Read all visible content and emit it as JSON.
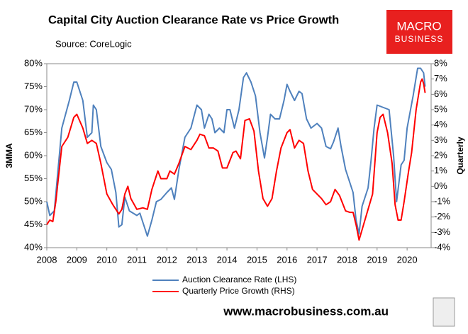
{
  "chart_data": {
    "type": "line",
    "title": "Capital City Auction Clearance Rate vs Price Growth",
    "subtitle": "Source: CoreLogic",
    "ylabel": "3MMA",
    "y2label": "Quarterly",
    "logo": [
      "MACRO",
      "BUSINESS"
    ],
    "footer": "www.macrobusiness.com.au",
    "grid": false,
    "legend": "bottom",
    "xlim": [
      2008,
      2020.8
    ],
    "xticks": [
      2008,
      2009,
      2010,
      2011,
      2012,
      2013,
      2014,
      2015,
      2016,
      2017,
      2018,
      2019,
      2020
    ],
    "ylim": [
      40,
      80
    ],
    "yticks": [
      {
        "value": 40,
        "label": "40%"
      },
      {
        "value": 45,
        "label": "45%"
      },
      {
        "value": 50,
        "label": "50%"
      },
      {
        "value": 55,
        "label": "55%"
      },
      {
        "value": 60,
        "label": "60%"
      },
      {
        "value": 65,
        "label": "65%"
      },
      {
        "value": 70,
        "label": "70%"
      },
      {
        "value": 75,
        "label": "75%"
      },
      {
        "value": 80,
        "label": "80%"
      }
    ],
    "y2lim": [
      -4,
      8
    ],
    "y2ticks": [
      {
        "value": -4,
        "label": "-4%"
      },
      {
        "value": -3,
        "label": "-3%"
      },
      {
        "value": -2,
        "label": "-2%"
      },
      {
        "value": -1,
        "label": "-1%"
      },
      {
        "value": 0,
        "label": "0%"
      },
      {
        "value": 1,
        "label": "1%"
      },
      {
        "value": 2,
        "label": "2%"
      },
      {
        "value": 3,
        "label": "3%"
      },
      {
        "value": 4,
        "label": "4%"
      },
      {
        "value": 5,
        "label": "5%"
      },
      {
        "value": 6,
        "label": "6%"
      },
      {
        "value": 7,
        "label": "7%"
      },
      {
        "value": 8,
        "label": "8%"
      }
    ],
    "series": [
      {
        "name": "Auction Clearance Rate (LHS)",
        "color": "#4f81bd",
        "axis": "y",
        "x": [
          2008.0,
          2008.1,
          2008.25,
          2008.5,
          2008.75,
          2008.9,
          2009.0,
          2009.2,
          2009.35,
          2009.5,
          2009.55,
          2009.65,
          2009.8,
          2010.0,
          2010.15,
          2010.3,
          2010.4,
          2010.5,
          2010.6,
          2010.75,
          2011.0,
          2011.1,
          2011.2,
          2011.35,
          2011.5,
          2011.65,
          2011.8,
          2012.0,
          2012.15,
          2012.25,
          2012.4,
          2012.6,
          2012.8,
          2013.0,
          2013.15,
          2013.25,
          2013.4,
          2013.5,
          2013.6,
          2013.75,
          2013.9,
          2014.0,
          2014.1,
          2014.25,
          2014.4,
          2014.55,
          2014.65,
          2014.8,
          2014.95,
          2015.1,
          2015.25,
          2015.35,
          2015.45,
          2015.6,
          2015.75,
          2015.9,
          2016.0,
          2016.1,
          2016.25,
          2016.4,
          2016.5,
          2016.65,
          2016.8,
          2017.0,
          2017.15,
          2017.3,
          2017.45,
          2017.55,
          2017.7,
          2017.8,
          2017.95,
          2018.1,
          2018.2,
          2018.3,
          2018.4,
          2018.5,
          2018.7,
          2018.8,
          2018.9,
          2019.0,
          2019.2,
          2019.4,
          2019.55,
          2019.65,
          2019.8,
          2019.9,
          2020.0,
          2020.2,
          2020.35,
          2020.45,
          2020.55,
          2020.6
        ],
        "values": [
          50,
          47,
          48,
          66,
          72,
          76,
          76,
          72,
          64,
          65,
          71,
          70,
          62,
          58.5,
          57,
          52,
          44.5,
          45,
          51,
          48,
          47,
          47.5,
          45.5,
          42.5,
          46,
          50,
          50.5,
          52,
          53,
          50.5,
          57,
          64,
          66,
          71,
          70,
          66,
          69,
          68,
          65,
          66,
          65,
          70,
          70,
          66,
          70,
          77,
          78,
          76,
          73,
          65,
          59.5,
          64,
          69,
          68,
          68,
          72,
          75.5,
          74,
          72,
          74,
          73.5,
          68,
          66,
          67,
          66,
          62,
          61.5,
          63,
          66,
          62,
          57,
          54,
          52,
          46,
          43,
          49,
          53,
          59,
          66,
          71,
          70.5,
          70,
          60,
          50,
          58,
          59,
          66,
          73,
          79,
          79,
          78,
          75
        ]
      },
      {
        "name": "Quarterly Price Growth (RHS)",
        "color": "#ff0000",
        "axis": "y2",
        "x": [
          2008.0,
          2008.1,
          2008.2,
          2008.3,
          2008.5,
          2008.7,
          2008.9,
          2009.0,
          2009.2,
          2009.35,
          2009.5,
          2009.65,
          2009.8,
          2010.0,
          2010.2,
          2010.4,
          2010.5,
          2010.6,
          2010.7,
          2010.8,
          2011.0,
          2011.2,
          2011.35,
          2011.5,
          2011.7,
          2011.8,
          2012.0,
          2012.1,
          2012.25,
          2012.4,
          2012.6,
          2012.8,
          2013.0,
          2013.1,
          2013.25,
          2013.4,
          2013.55,
          2013.7,
          2013.85,
          2014.0,
          2014.2,
          2014.3,
          2014.45,
          2014.6,
          2014.75,
          2014.9,
          2015.05,
          2015.2,
          2015.35,
          2015.5,
          2015.65,
          2015.8,
          2016.0,
          2016.1,
          2016.25,
          2016.4,
          2016.55,
          2016.7,
          2016.85,
          2017.0,
          2017.15,
          2017.3,
          2017.45,
          2017.6,
          2017.75,
          2017.95,
          2018.1,
          2018.2,
          2018.3,
          2018.4,
          2018.55,
          2018.7,
          2018.85,
          2019.0,
          2019.1,
          2019.2,
          2019.35,
          2019.5,
          2019.6,
          2019.7,
          2019.8,
          2019.9,
          2020.05,
          2020.15,
          2020.3,
          2020.45,
          2020.5,
          2020.55,
          2020.6
        ],
        "values": [
          -2.5,
          -2.2,
          -2.3,
          -1,
          2.6,
          3.2,
          4.5,
          4.7,
          3.8,
          2.8,
          3.0,
          2.8,
          1.5,
          -0.5,
          -1.2,
          -1.8,
          -1.5,
          -0.5,
          0,
          -0.8,
          -1.5,
          -1.4,
          -1.5,
          -0.2,
          1.0,
          0.5,
          0.5,
          1.0,
          0.8,
          1.5,
          2.6,
          2.4,
          3.0,
          3.4,
          3.3,
          2.5,
          2.5,
          2.3,
          1.2,
          1.2,
          2.2,
          2.3,
          1.8,
          4.3,
          4.4,
          3.6,
          1.0,
          -0.8,
          -1.3,
          -0.8,
          1.0,
          2.5,
          3.5,
          3.7,
          2.5,
          3.0,
          2.8,
          1.0,
          -0.2,
          -0.5,
          -0.8,
          -1.2,
          -1.0,
          -0.2,
          -0.6,
          -1.6,
          -1.7,
          -1.7,
          -2.5,
          -3.5,
          -2.5,
          -1.5,
          -0.5,
          3.5,
          4.5,
          4.7,
          3.5,
          1.5,
          -1.2,
          -2.2,
          -2.2,
          -1,
          1.0,
          2.2,
          5.0,
          6.8,
          7.0,
          6.7,
          6.1
        ]
      }
    ]
  }
}
